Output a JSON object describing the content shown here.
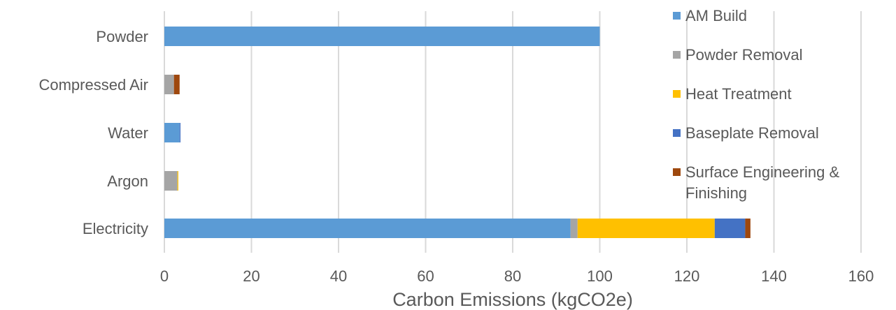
{
  "chart_data": {
    "type": "bar",
    "orientation": "horizontal",
    "stacked": true,
    "title": "",
    "xlabel": "Carbon Emissions (kgCO2e)",
    "ylabel": "",
    "xlim": [
      0,
      160
    ],
    "x_ticks": [
      0,
      20,
      40,
      60,
      80,
      100,
      120,
      140,
      160
    ],
    "grid": "vertical",
    "legend_position": "right",
    "categories": [
      "Powder",
      "Compressed Air",
      "Water",
      "Argon",
      "Electricity"
    ],
    "series": [
      {
        "name": "AM Build",
        "color": "#5B9BD5",
        "values": [
          100,
          0,
          3.5,
          0,
          93.3
        ]
      },
      {
        "name": "Powder Removal",
        "color": "#A5A5A5",
        "values": [
          0,
          2.2,
          0,
          3.0,
          1.6
        ]
      },
      {
        "name": "Heat Treatment",
        "color": "#FFC000",
        "values": [
          0,
          0,
          0,
          0.2,
          31.5
        ]
      },
      {
        "name": "Baseplate Removal",
        "color": "#4472C4",
        "values": [
          0,
          0,
          0.2,
          0,
          7.0
        ]
      },
      {
        "name": "Surface Engineering & Finishing",
        "color": "#9E480E",
        "values": [
          0,
          1.3,
          0,
          0,
          1.2
        ]
      }
    ],
    "legend_lines": [
      [
        "AM Build"
      ],
      [
        "Powder Removal"
      ],
      [
        "Heat Treatment"
      ],
      [
        "Baseplate Removal"
      ],
      [
        "Surface Engineering &",
        "Finishing"
      ]
    ]
  }
}
